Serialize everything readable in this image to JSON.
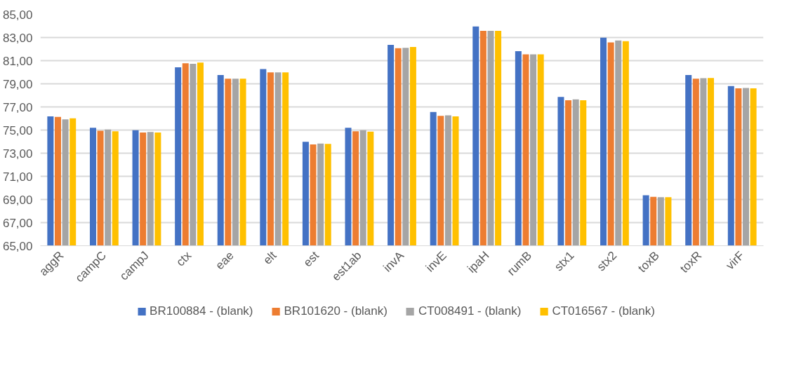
{
  "chart_data": {
    "type": "bar",
    "categories": [
      "aggR",
      "campC",
      "campJ",
      "ctx",
      "eae",
      "elt",
      "est",
      "est1ab",
      "invA",
      "invE",
      "ipaH",
      "rumB",
      "stx1",
      "stx2",
      "toxB",
      "toxR",
      "virF"
    ],
    "series": [
      {
        "name": "BR100884 - (blank)",
        "color": "#4472c4",
        "values": [
          76.18,
          75.19,
          74.98,
          80.43,
          79.76,
          80.28,
          73.99,
          75.19,
          82.37,
          76.56,
          83.95,
          81.82,
          77.86,
          82.98,
          69.36,
          79.76,
          78.81
        ]
      },
      {
        "name": "BR101620 - (blank)",
        "color": "#ed7d31",
        "values": [
          76.14,
          74.94,
          74.79,
          80.77,
          79.44,
          79.99,
          73.76,
          74.9,
          82.07,
          76.22,
          83.57,
          81.55,
          77.57,
          82.58,
          69.23,
          79.44,
          78.6
        ]
      },
      {
        "name": "CT008491 - (blank)",
        "color": "#a5a5a5",
        "values": [
          75.93,
          75.04,
          74.83,
          80.73,
          79.44,
          79.99,
          73.84,
          74.98,
          82.1,
          76.28,
          83.57,
          81.55,
          77.65,
          82.75,
          69.19,
          79.48,
          78.64
        ]
      },
      {
        "name": "CT016567 - (blank)",
        "color": "#ffc000",
        "values": [
          76.01,
          74.9,
          74.79,
          80.83,
          79.44,
          79.99,
          73.8,
          74.87,
          82.18,
          76.18,
          83.57,
          81.55,
          77.57,
          82.68,
          69.19,
          79.5,
          78.6
        ]
      }
    ],
    "ylim": [
      65,
      85
    ],
    "yticks": [
      {
        "value": 65,
        "label": "65,00"
      },
      {
        "value": 67,
        "label": "67,00"
      },
      {
        "value": 69,
        "label": "69,00"
      },
      {
        "value": 71,
        "label": "71,00"
      },
      {
        "value": 73,
        "label": "73,00"
      },
      {
        "value": 75,
        "label": "75,00"
      },
      {
        "value": 77,
        "label": "77,00"
      },
      {
        "value": 79,
        "label": "79,00"
      },
      {
        "value": 81,
        "label": "81,00"
      },
      {
        "value": 83,
        "label": "83,00"
      },
      {
        "value": 85,
        "label": "85,00"
      }
    ],
    "grid": "y",
    "legend": "bottom"
  }
}
